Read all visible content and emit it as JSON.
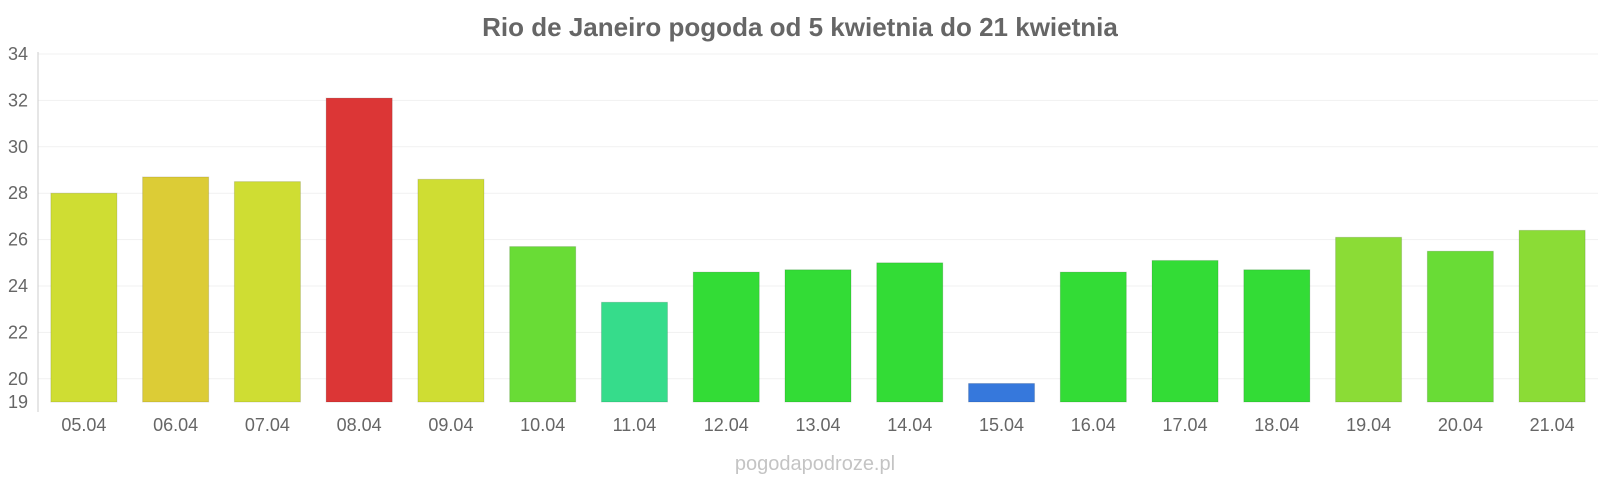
{
  "chart_data": {
    "type": "bar",
    "title": "Rio de Janeiro pogoda od 5 kwietnia do 21 kwietnia",
    "xlabel": "",
    "ylabel": "",
    "categories": [
      "05.04",
      "06.04",
      "07.04",
      "08.04",
      "09.04",
      "10.04",
      "11.04",
      "12.04",
      "13.04",
      "14.04",
      "15.04",
      "16.04",
      "17.04",
      "18.04",
      "19.04",
      "20.04",
      "21.04"
    ],
    "values": [
      28.0,
      28.7,
      28.5,
      32.1,
      28.6,
      25.7,
      23.3,
      24.6,
      24.7,
      25.0,
      19.8,
      24.6,
      25.1,
      24.7,
      26.1,
      25.5,
      26.4
    ],
    "colors": [
      "#cfdd33",
      "#dccc36",
      "#cfdd33",
      "#dc3636",
      "#cfdd33",
      "#69dc36",
      "#36dc8b",
      "#33dc36",
      "#33dc36",
      "#33dc36",
      "#3678dc",
      "#33dc36",
      "#33dc36",
      "#33dc36",
      "#8bdc36",
      "#69dc36",
      "#8bdc36"
    ],
    "y_ticks": [
      19,
      20,
      22,
      24,
      26,
      28,
      30,
      32,
      34
    ],
    "ylim": [
      19,
      34
    ],
    "grid": true,
    "legend": "none"
  },
  "watermark": "pogodapodroze.pl"
}
